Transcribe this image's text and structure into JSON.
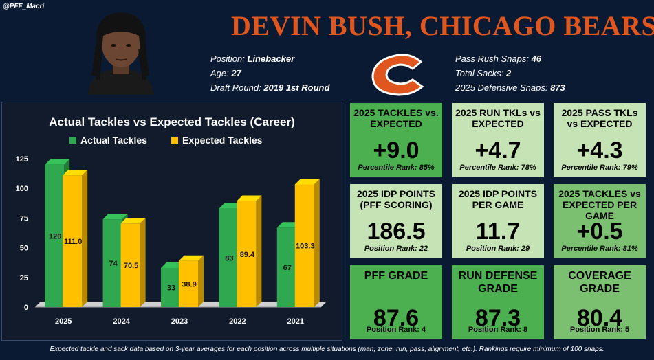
{
  "handle": "@PFF_Macri",
  "player": {
    "title": "DEVIN BUSH, CHICAGO BEARS",
    "position_label": "Position:",
    "position": "Linebacker",
    "age_label": "Age:",
    "age": "27",
    "draft_label": "Draft Round:",
    "draft": "2019 1st Round",
    "pass_rush_label": "Pass Rush Snaps:",
    "pass_rush": "46",
    "sacks_label": "Total Sacks:",
    "sacks": "2",
    "def_snaps_label": "2025 Defensive Snaps:",
    "def_snaps": "873"
  },
  "colors": {
    "accent": "#e0561f",
    "background": "#0b1a33",
    "actual": "#2fa84f",
    "expected": "#ffc000",
    "tile_dark": "#4caf50",
    "tile_mid": "#7bc070",
    "tile_light": "#c5e3b4"
  },
  "chart_data": {
    "type": "bar",
    "title": "Actual Tackles vs Expected Tackles (Career)",
    "categories": [
      "2025",
      "2024",
      "2023",
      "2022",
      "2021"
    ],
    "series": [
      {
        "name": "Actual Tackles",
        "values": [
          120,
          74,
          33,
          83,
          67
        ],
        "labels": [
          "120",
          "74",
          "33",
          "83",
          "67"
        ]
      },
      {
        "name": "Expected Tackles",
        "values": [
          111.0,
          70.5,
          38.9,
          89.4,
          103.3
        ],
        "labels": [
          "111.0",
          "70.5",
          "38.9",
          "89.4",
          "103.3"
        ]
      }
    ],
    "y_ticks": [
      "0",
      "25",
      "50",
      "75",
      "100",
      "125"
    ],
    "ylim": [
      0,
      125
    ],
    "xlabel": "",
    "ylabel": "",
    "legend_position": "top"
  },
  "tiles": [
    {
      "title": "2025 TACKLES vs. EXPECTED",
      "value": "+9.0",
      "rank": "Percentile Rank: 85%",
      "shade": "tile_dark"
    },
    {
      "title": "2025 RUN TKLs vs EXPECTED",
      "value": "+4.7",
      "rank": "Percentile Rank: 78%",
      "shade": "tile_light"
    },
    {
      "title": "2025 PASS TKLs vs EXPECTED",
      "value": "+4.3",
      "rank": "Percentile Rank: 79%",
      "shade": "tile_light"
    },
    {
      "title": "2025 IDP POINTS (PFF SCORING)",
      "value": "186.5",
      "rank": "Position Rank: 22",
      "shade": "tile_light"
    },
    {
      "title": "2025 IDP POINTS PER GAME",
      "value": "11.7",
      "rank": "Position Rank: 29",
      "shade": "tile_light"
    },
    {
      "title": "2025 TACKLES vs EXPECTED PER GAME",
      "value": "+0.5",
      "rank": "Percentile Rank: 81%",
      "shade": "tile_mid"
    },
    {
      "title": "PFF GRADE",
      "value": "87.6",
      "rank": "Position Rank: 4",
      "shade": "tile_dark"
    },
    {
      "title": "RUN DEFENSE GRADE",
      "value": "87.3",
      "rank": "Position Rank: 8",
      "shade": "tile_dark"
    },
    {
      "title": "COVERAGE GRADE",
      "value": "80.4",
      "rank": "Position Rank: 5",
      "shade": "tile_mid"
    }
  ],
  "footnote": "Expected tackle and sack data based on 3-year averages for each position across multiple situations (man, zone, run, pass, alignment, etc.). Rankings require minimum of 100 snaps."
}
